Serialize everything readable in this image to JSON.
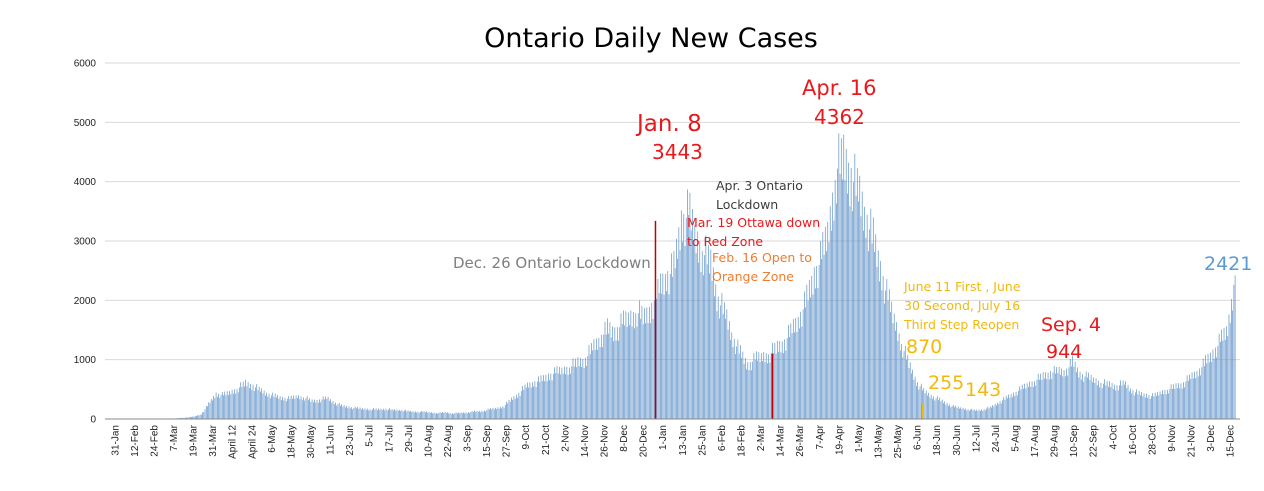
{
  "chart_data": {
    "type": "bar",
    "title": "Ontario Daily New Cases",
    "ylim": [
      0,
      6000
    ],
    "yticks": [
      0,
      1000,
      2000,
      3000,
      4000,
      5000,
      6000
    ],
    "grid": true,
    "bar_color": "#5b8fc7",
    "x_tick_labels": [
      "31-Jan",
      "12-Feb",
      "24-Feb",
      "7-Mar",
      "19-Mar",
      "31-Mar",
      "April 12",
      "April 24",
      "6-May",
      "18-May",
      "30-May",
      "11-Jun",
      "23-Jun",
      "5-Jul",
      "17-Jul",
      "29-Jul",
      "10-Aug",
      "22-Aug",
      "3-Sep",
      "15-Sep",
      "27-Sep",
      "9-Oct",
      "21-Oct",
      "2-Nov",
      "14-Nov",
      "26-Nov",
      "8-Dec",
      "20-Dec",
      "1-Jan",
      "13-Jan",
      "25-Jan",
      "6-Feb",
      "18-Feb",
      "2-Mar",
      "14-Mar",
      "26-Mar",
      "7-Apr",
      "19-Apr",
      "1-May",
      "13-May",
      "25-May",
      "6-Jun",
      "18-Jun",
      "30-Jun",
      "12-Jul",
      "24-Jul",
      "5-Aug",
      "17-Aug",
      "29-Aug",
      "10-Sep",
      "22-Sep",
      "4-Oct",
      "16-Oct",
      "28-Oct",
      "9-Nov",
      "21-Nov",
      "3-Dec",
      "15-Dec"
    ],
    "daily_cases_sampled_every_6_days": [
      0,
      0,
      0,
      0,
      0,
      0,
      0,
      0,
      0,
      5,
      15,
      25,
      40,
      80,
      250,
      420,
      400,
      450,
      520,
      600,
      560,
      480,
      420,
      380,
      350,
      340,
      380,
      360,
      300,
      320,
      350,
      280,
      220,
      200,
      180,
      170,
      165,
      160,
      170,
      150,
      150,
      130,
      120,
      120,
      110,
      100,
      110,
      95,
      100,
      110,
      125,
      130,
      160,
      180,
      220,
      330,
      430,
      550,
      610,
      650,
      720,
      780,
      820,
      880,
      950,
      1000,
      1200,
      1350,
      1500,
      1450,
      1600,
      1700,
      1800,
      1700,
      1900,
      2200,
      2400,
      2500,
      3300,
      3443,
      3000,
      2800,
      2600,
      2000,
      1750,
      1350,
      1100,
      900,
      1000,
      1050,
      1100,
      1200,
      1300,
      1500,
      1700,
      2000,
      2400,
      2700,
      3200,
      4200,
      4362,
      4100,
      3800,
      3400,
      3000,
      2500,
      2000,
      1600,
      1200,
      870,
      600,
      450,
      380,
      320,
      255,
      200,
      180,
      160,
      143,
      160,
      200,
      280,
      350,
      420,
      500,
      580,
      650,
      720,
      780,
      800,
      800,
      944,
      750,
      700,
      650,
      600,
      580,
      550,
      600,
      480,
      420,
      400,
      380,
      450,
      500,
      550,
      600,
      700,
      800,
      950,
      1100,
      1300,
      1500,
      2421
    ],
    "annotations": [
      {
        "text": "Jan. 8",
        "color": "#e8191c",
        "x": 3443,
        "y": 5000
      },
      {
        "text": "3443",
        "color": "#e8191c",
        "y": 3443
      },
      {
        "text": "Apr. 16",
        "color": "#e8191c"
      },
      {
        "text": "4362",
        "color": "#e8191c",
        "y": 4362
      },
      {
        "text": "Apr. 3 Ontario",
        "color": "#3c3c3c"
      },
      {
        "text": "Lockdown",
        "color": "#3c3c3c"
      },
      {
        "text": "Mar. 19 Ottawa down",
        "color": "#e8191c"
      },
      {
        "text": "to Red Zone",
        "color": "#e8191c"
      },
      {
        "text": "Feb. 16 Open to",
        "color": "#ed7d31"
      },
      {
        "text": "Orange Zone",
        "color": "#ed7d31"
      },
      {
        "text": "Dec. 26 Ontario Lockdown",
        "color": "#7f7f7f"
      },
      {
        "text": "2421",
        "color": "#5b9bd5",
        "y": 2421
      },
      {
        "text": "June 11 First , June",
        "color": "#f2b90c"
      },
      {
        "text": "30 Second, July 16",
        "color": "#f2b90c"
      },
      {
        "text": "Third Step Reopen",
        "color": "#f2b90c"
      },
      {
        "text": "870",
        "color": "#f2b90c",
        "y": 870
      },
      {
        "text": "255",
        "color": "#f2b90c",
        "y": 255
      },
      {
        "text": "143",
        "color": "#f2b90c",
        "y": 143
      },
      {
        "text": "Sep. 4",
        "color": "#e8191c"
      },
      {
        "text": "944",
        "color": "#e8191c",
        "y": 944
      }
    ],
    "event_lines": [
      {
        "color": "#c00000"
      },
      {
        "color": "#c00000"
      },
      {
        "color": "#f2b90c"
      }
    ]
  }
}
